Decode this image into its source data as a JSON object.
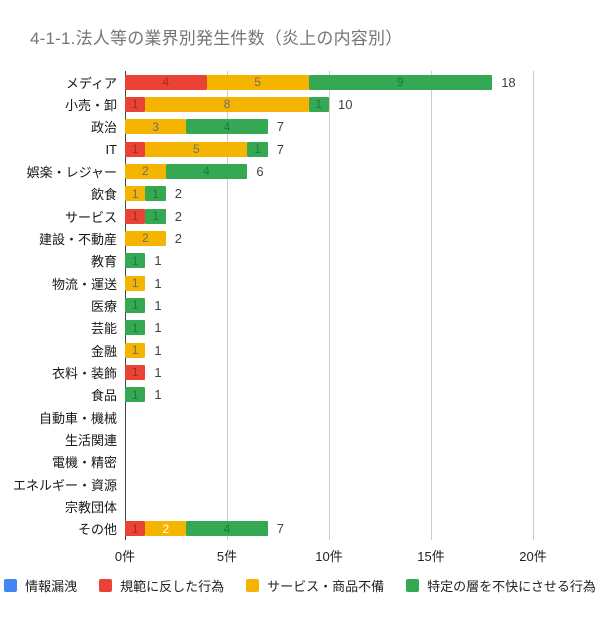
{
  "chart_data": {
    "type": "bar",
    "orientation": "horizontal",
    "stacked": true,
    "title": "4-1-1.法人等の業界別発生件数（炎上の内容別）",
    "title_color": "#757575",
    "x_unit": "件",
    "xlim": [
      0,
      20
    ],
    "x_ticks": [
      {
        "value": 0,
        "label": "0件"
      },
      {
        "value": 5,
        "label": "5件"
      },
      {
        "value": 10,
        "label": "10件"
      },
      {
        "value": 15,
        "label": "15件"
      },
      {
        "value": 20,
        "label": "20件"
      }
    ],
    "grid": true,
    "legend_position": "bottom",
    "series": [
      {
        "name": "情報漏洩",
        "color": "#4285F4",
        "in_label_color": "#2a5db0"
      },
      {
        "name": "規範に反した行為",
        "color": "#EA4335",
        "in_label_color": "#9c2f24"
      },
      {
        "name": "サービス・商品不備",
        "color": "#F5B400",
        "in_label_color": "#6e6e6e"
      },
      {
        "name": "特定の層を不快にさせる行為",
        "color": "#34A853",
        "in_label_color": "#1f7a40"
      }
    ],
    "categories": [
      "メディア",
      "小売・卸",
      "政治",
      "IT",
      "娯楽・レジャー",
      "飲食",
      "サービス",
      "建設・不動産",
      "教育",
      "物流・運送",
      "医療",
      "芸能",
      "金融",
      "衣料・装飾",
      "食品",
      "自動車・機械",
      "生活関連",
      "電機・精密",
      "エネルギー・資源",
      "宗教団体",
      "その他"
    ],
    "rows": [
      {
        "category": "メディア",
        "values": [
          0,
          4,
          5,
          9
        ],
        "total": 18
      },
      {
        "category": "小売・卸",
        "values": [
          0,
          1,
          8,
          1
        ],
        "total": 10
      },
      {
        "category": "政治",
        "values": [
          0,
          0,
          3,
          4
        ],
        "total": 7
      },
      {
        "category": "IT",
        "values": [
          0,
          1,
          5,
          1
        ],
        "total": 7
      },
      {
        "category": "娯楽・レジャー",
        "values": [
          0,
          0,
          2,
          4
        ],
        "total": 6
      },
      {
        "category": "飲食",
        "values": [
          0,
          0,
          1,
          1
        ],
        "total": 2
      },
      {
        "category": "サービス",
        "values": [
          0,
          1,
          0,
          1
        ],
        "total": 2
      },
      {
        "category": "建設・不動産",
        "values": [
          0,
          0,
          2,
          0
        ],
        "total": 2
      },
      {
        "category": "教育",
        "values": [
          0,
          0,
          0,
          1
        ],
        "total": 1
      },
      {
        "category": "物流・運送",
        "values": [
          0,
          0,
          1,
          0
        ],
        "total": 1
      },
      {
        "category": "医療",
        "values": [
          0,
          0,
          0,
          1
        ],
        "total": 1
      },
      {
        "category": "芸能",
        "values": [
          0,
          0,
          0,
          1
        ],
        "total": 1
      },
      {
        "category": "金融",
        "values": [
          0,
          0,
          1,
          0
        ],
        "total": 1
      },
      {
        "category": "衣料・装飾",
        "values": [
          0,
          1,
          0,
          0
        ],
        "total": 1
      },
      {
        "category": "食品",
        "values": [
          0,
          0,
          0,
          1
        ],
        "total": 1
      },
      {
        "category": "自動車・機械",
        "values": [
          0,
          0,
          0,
          0
        ],
        "total": 0
      },
      {
        "category": "生活関連",
        "values": [
          0,
          0,
          0,
          0
        ],
        "total": 0
      },
      {
        "category": "電機・精密",
        "values": [
          0,
          0,
          0,
          0
        ],
        "total": 0
      },
      {
        "category": "エネルギー・資源",
        "values": [
          0,
          0,
          0,
          0
        ],
        "total": 0
      },
      {
        "category": "宗教団体",
        "values": [
          0,
          0,
          0,
          0
        ],
        "total": 0
      },
      {
        "category": "その他",
        "values": [
          0,
          1,
          2,
          4
        ],
        "total": 7,
        "segment_label_colors": [
          null,
          null,
          "#ffffff",
          null
        ]
      }
    ],
    "axis_colors": {
      "gridline": "#cccccc",
      "baseline": "#424242",
      "tick_label": "#222222",
      "total_label": "#424242",
      "category_label": "#171717"
    }
  }
}
